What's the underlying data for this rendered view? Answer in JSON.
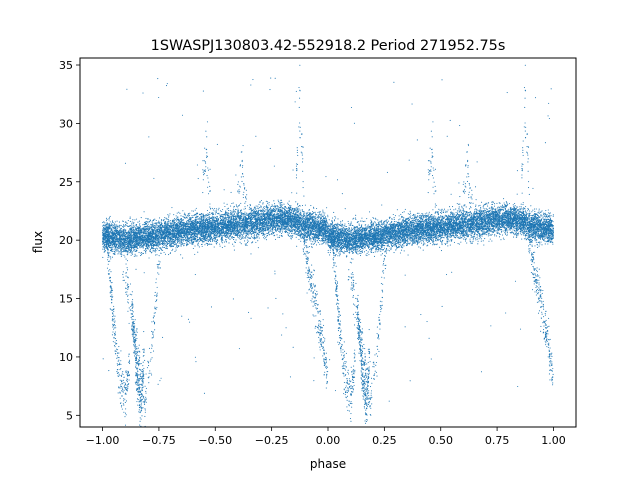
{
  "chart_data": {
    "type": "scatter",
    "title": "1SWASPJ130803.42-552918.2 Period 271952.75s",
    "xlabel": "phase",
    "ylabel": "flux",
    "xlim": [
      -1.1,
      1.1
    ],
    "ylim": [
      4.0,
      35.6
    ],
    "xticks": [
      -1.0,
      -0.75,
      -0.5,
      -0.25,
      0.0,
      0.25,
      0.5,
      0.75,
      1.0
    ],
    "xtick_labels": [
      "−1.00",
      "−0.75",
      "−0.50",
      "−0.25",
      "0.00",
      "0.25",
      "0.50",
      "0.75",
      "1.00"
    ],
    "yticks": [
      5,
      10,
      15,
      20,
      25,
      30,
      35
    ],
    "ytick_labels": [
      "5",
      "10",
      "15",
      "20",
      "25",
      "30",
      "35"
    ],
    "grid": false,
    "marker_color": "#1f77b4",
    "series": [
      {
        "values_description_omitted": true,
        "baseline_profile": {
          "phase": [
            0.0,
            0.05,
            0.1,
            0.2,
            0.3,
            0.4,
            0.5,
            0.6,
            0.7,
            0.75,
            0.8,
            0.85,
            0.9,
            0.95,
            1.0
          ],
          "flux": [
            20.3,
            20.2,
            20.1,
            20.3,
            20.6,
            20.9,
            21.1,
            21.3,
            21.6,
            21.8,
            21.8,
            21.6,
            21.3,
            21.0,
            20.9
          ],
          "scatter": 0.6
        },
        "eclipse_tracks": [
          {
            "phase": [
              0.02,
              0.045,
              0.07,
              0.1,
              0.12
            ],
            "flux": [
              20.0,
              14.0,
              9.0,
              6.5,
              9.5
            ]
          },
          {
            "phase": [
              0.08,
              0.12,
              0.16,
              0.19,
              0.22,
              0.26
            ],
            "flux": [
              20.0,
              15.0,
              9.5,
              6.0,
              11.0,
              20.0
            ]
          },
          {
            "phase": [
              0.13,
              0.155,
              0.17,
              0.185
            ],
            "flux": [
              14.0,
              8.0,
              6.0,
              10.0
            ]
          },
          {
            "phase": [
              0.89,
              0.93,
              0.96,
              0.985,
              1.0
            ],
            "flux": [
              20.5,
              16.0,
              13.0,
              10.0,
              7.5
            ]
          }
        ],
        "spikes": [
          {
            "phase": [
              0.6,
              0.62,
              0.64
            ],
            "flux": [
              24.0,
              25.5,
              23.5
            ]
          },
          {
            "phase": [
              0.44,
              0.46,
              0.48
            ],
            "flux": [
              25.0,
              27.5,
              24.0
            ]
          },
          {
            "phase": [
              0.86,
              0.875,
              0.89
            ],
            "flux": [
              26.0,
              32.0,
              25.0
            ]
          }
        ]
      }
    ]
  }
}
